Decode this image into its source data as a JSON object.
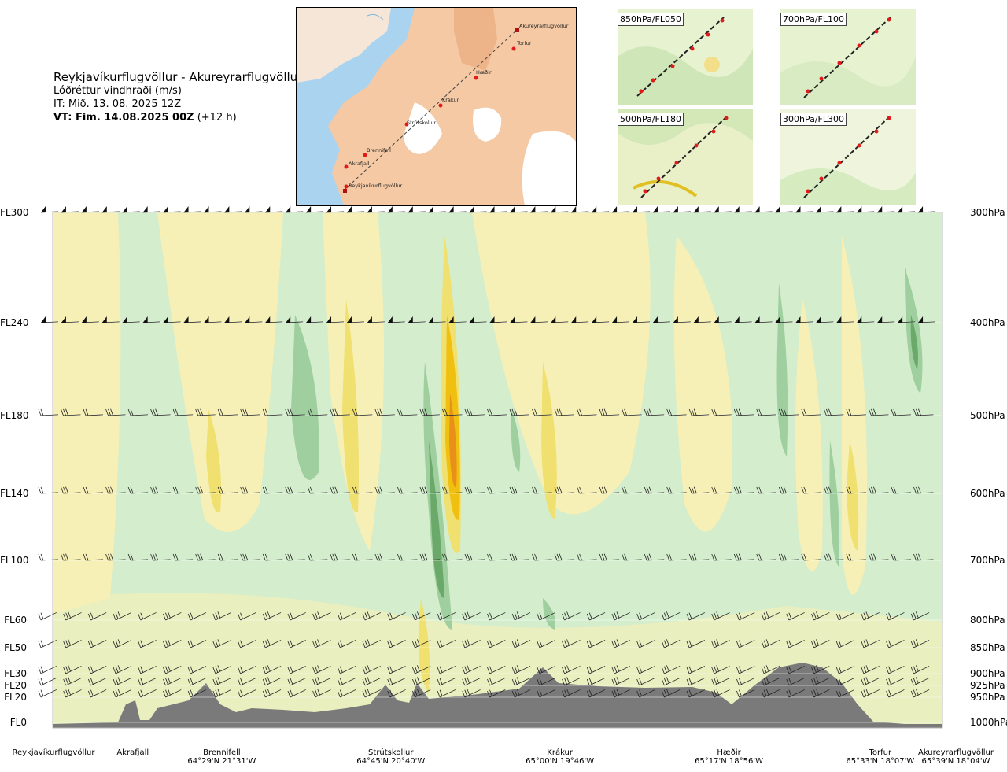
{
  "header": {
    "route": "Reykjavíkurflugvöllur - Akureyrarflugvöllur",
    "parameter": "Lóðréttur vindhraði (m/s)",
    "issue_time": "IT: Mið. 13. 08. 2025 12Z",
    "valid_prefix": "VT: Fim. 14.08.2025 00Z",
    "valid_suffix": "(+12 h)"
  },
  "map": {
    "places": [
      "Akureyrarflugvöllur",
      "Torfur",
      "Hæðir",
      "Krákur",
      "Strútskollur",
      "Brennifell",
      "Akrafjall",
      "Reykjavíkurflugvöllur"
    ]
  },
  "mini_maps": [
    {
      "label": "850hPa/FL050"
    },
    {
      "label": "700hPa/FL100"
    },
    {
      "label": "500hPa/FL180"
    },
    {
      "label": "300hPa/FL300"
    }
  ],
  "chart_data": {
    "type": "heatmap",
    "title": "Lóðréttur vindhraði (m/s)",
    "levels": [
      {
        "fl": "FL300",
        "hpa": "300hPa",
        "pressure": 300
      },
      {
        "fl": "FL240",
        "hpa": "400hPa",
        "pressure": 400
      },
      {
        "fl": "FL180",
        "hpa": "500hPa",
        "pressure": 500
      },
      {
        "fl": "FL140",
        "hpa": "600hPa",
        "pressure": 600
      },
      {
        "fl": "FL100",
        "hpa": "700hPa",
        "pressure": 700
      },
      {
        "fl": "FL60",
        "hpa": "800hPa",
        "pressure": 800
      },
      {
        "fl": "FL50",
        "hpa": "850hPa",
        "pressure": 850
      },
      {
        "fl": "FL30",
        "hpa": "900hPa",
        "pressure": 900
      },
      {
        "fl": "FL20",
        "hpa": "925hPa",
        "pressure": 925
      },
      {
        "fl": "FL20",
        "hpa": "950hPa",
        "pressure": 950
      },
      {
        "fl": "FL0",
        "hpa": "1000hPa",
        "pressure": 1000
      }
    ],
    "route_points": [
      {
        "name": "Reykjavíkurflugvöllur",
        "coord": "",
        "pos": 0.0
      },
      {
        "name": "Akrafjall",
        "coord": "",
        "pos": 0.09
      },
      {
        "name": "Brennifell",
        "coord": "64°29'N 21°31'W",
        "pos": 0.19
      },
      {
        "name": "Strútskollur",
        "coord": "64°45'N 20°40'W",
        "pos": 0.38
      },
      {
        "name": "Krákur",
        "coord": "65°00'N 19°46'W",
        "pos": 0.57
      },
      {
        "name": "Hæðir",
        "coord": "65°17'N 18°56'W",
        "pos": 0.76
      },
      {
        "name": "Torfur",
        "coord": "65°33'N 18°07'W",
        "pos": 0.93
      },
      {
        "name": "Akureyrarflugvöllur",
        "coord": "65°39'N 18°04'W",
        "pos": 1.0
      }
    ],
    "colors": {
      "strong_down": "#6aa96a",
      "mod_down": "#9fcf9f",
      "weak_down": "#cfe9c8",
      "neutral": "#eef8e8",
      "weak_up": "#f8f1b8",
      "mod_up": "#efe070",
      "strong_up": "#f0c010",
      "max_up": "#e8901a",
      "terrain": "#7a7a7a"
    }
  }
}
